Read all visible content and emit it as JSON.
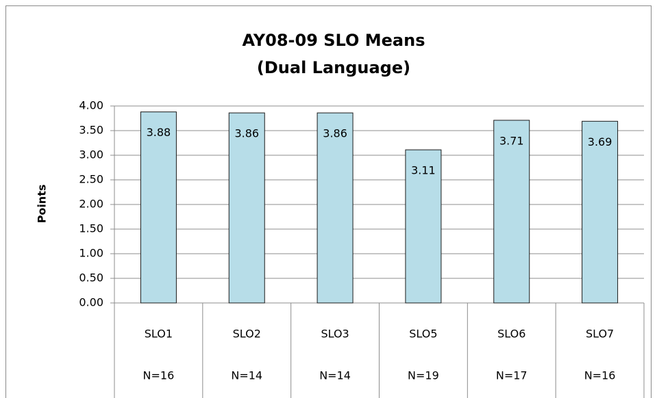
{
  "chart_data": {
    "type": "bar",
    "title": "AY08-09 SLO Means",
    "subtitle": "(Dual Language)",
    "y_label": "Points",
    "categories": [
      "SLO1",
      "SLO2",
      "SLO3",
      "SLO5",
      "SLO6",
      "SLO7"
    ],
    "category_counts": [
      "N=16",
      "N=14",
      "N=14",
      "N=19",
      "N=17",
      "N=16"
    ],
    "values": [
      3.88,
      3.86,
      3.86,
      3.11,
      3.71,
      3.69
    ],
    "color": "#b7dde8",
    "ylim": [
      0,
      4
    ],
    "yticks": [
      {
        "value": 0,
        "label": "0.00"
      },
      {
        "value": 0.5,
        "label": "0.50"
      },
      {
        "value": 1,
        "label": "1.00"
      },
      {
        "value": 1.5,
        "label": "1.50"
      },
      {
        "value": 2,
        "label": "2.00"
      },
      {
        "value": 2.5,
        "label": "2.50"
      },
      {
        "value": 3,
        "label": "3.00"
      },
      {
        "value": 3.5,
        "label": "3.50"
      },
      {
        "value": 4,
        "label": "4.00"
      }
    ],
    "grid": true
  }
}
